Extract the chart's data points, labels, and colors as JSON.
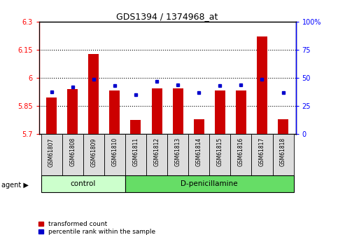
{
  "title": "GDS1394 / 1374968_at",
  "samples": [
    "GSM61807",
    "GSM61808",
    "GSM61809",
    "GSM61810",
    "GSM61811",
    "GSM61812",
    "GSM61813",
    "GSM61814",
    "GSM61815",
    "GSM61816",
    "GSM61817",
    "GSM61818"
  ],
  "transformed_counts": [
    5.895,
    5.94,
    6.13,
    5.935,
    5.775,
    5.945,
    5.945,
    5.78,
    5.935,
    5.935,
    6.22,
    5.78
  ],
  "percentile_ranks": [
    38,
    42,
    49,
    43,
    35,
    47,
    44,
    37,
    43,
    44,
    49,
    37
  ],
  "groups": [
    "control",
    "control",
    "control",
    "control",
    "D-penicillamine",
    "D-penicillamine",
    "D-penicillamine",
    "D-penicillamine",
    "D-penicillamine",
    "D-penicillamine",
    "D-penicillamine",
    "D-penicillamine"
  ],
  "ylim_left": [
    5.7,
    6.3
  ],
  "ylim_right": [
    0,
    100
  ],
  "yticks_left": [
    5.7,
    5.85,
    6.0,
    6.15,
    6.3
  ],
  "yticks_right": [
    0,
    25,
    50,
    75,
    100
  ],
  "ytick_labels_left": [
    "5.7",
    "5.85",
    "6",
    "6.15",
    "6.3"
  ],
  "ytick_labels_right": [
    "0",
    "25",
    "50",
    "75",
    "100%"
  ],
  "bar_color": "#cc0000",
  "dot_color": "#0000cc",
  "control_bg": "#ccffcc",
  "treatment_bg": "#66dd66",
  "sample_bg": "#dddddd",
  "bar_width": 0.5,
  "baseline": 5.7,
  "n_control": 4,
  "legend_items": [
    "transformed count",
    "percentile rank within the sample"
  ],
  "gridlines": [
    5.85,
    6.0,
    6.15
  ]
}
